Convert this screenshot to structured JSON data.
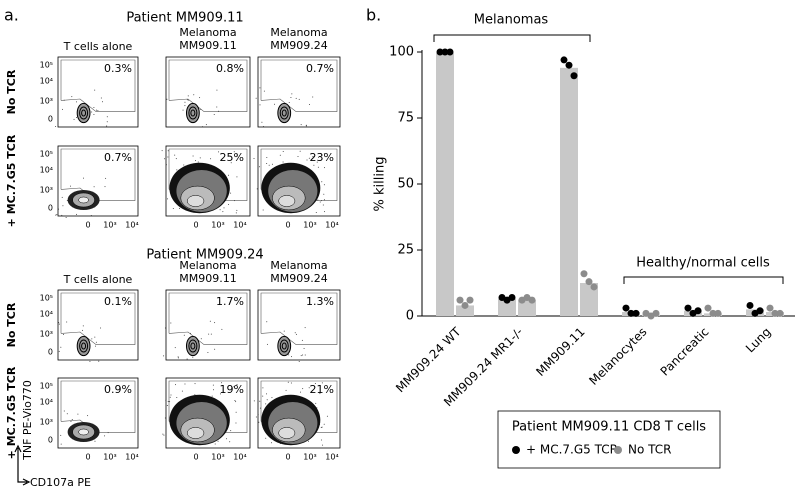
{
  "panel_a": {
    "label": "a.",
    "patients": [
      {
        "title": "Patient MM909.11",
        "columns": [
          [
            "T cells alone"
          ],
          [
            "Melanoma",
            "MM909.11"
          ],
          [
            "Melanoma",
            "MM909.24"
          ]
        ],
        "rows": [
          "No TCR",
          "+ MC.7.G5 TCR"
        ],
        "percentages": [
          [
            "0.3%",
            "0.8%",
            "0.7%"
          ],
          [
            "0.7%",
            "25%",
            "23%"
          ]
        ]
      },
      {
        "title": "Patient MM909.24",
        "columns": [
          [
            "T cells alone"
          ],
          [
            "Melanoma",
            "MM909.11"
          ],
          [
            "Melanoma",
            "MM909.24"
          ]
        ],
        "rows": [
          "No TCR",
          "+ MC.7.G5 TCR"
        ],
        "percentages": [
          [
            "0.1%",
            "1.7%",
            "1.3%"
          ],
          [
            "0.9%",
            "19%",
            "21%"
          ]
        ]
      }
    ],
    "yticks": [
      "10⁵",
      "10⁴",
      "10³",
      "0"
    ],
    "xticks": [
      "0",
      "10³",
      "10⁴"
    ],
    "ylabel": "TNF PE-Vio770",
    "xlabel": "CD107a PE"
  },
  "chart_data": {
    "type": "bar",
    "label": "b.",
    "ylabel": "% killing",
    "categories": [
      "MM909.24 WT",
      "MM909.24 MR1-/-",
      "MM909.11",
      "Melanocytes",
      "Pancreatic",
      "Lung"
    ],
    "category_colors": [
      "#2438d6",
      "#2438d6",
      "#e0302a",
      "#000000",
      "#000000",
      "#000000"
    ],
    "series": [
      {
        "name": "+ MC.7.G5 TCR",
        "color": "#000000",
        "bar_color": "#c8c8c8",
        "values": [
          99.5,
          6.5,
          94,
          1.5,
          2,
          2.5
        ],
        "points": [
          [
            100,
            100,
            100
          ],
          [
            7,
            6,
            7
          ],
          [
            97,
            95,
            91
          ],
          [
            3,
            1,
            1
          ],
          [
            3,
            1,
            2
          ],
          [
            4,
            1,
            2
          ]
        ]
      },
      {
        "name": "No TCR",
        "color": "#8c8c8c",
        "bar_color": "#c8c8c8",
        "values": [
          4,
          6,
          12.5,
          0.5,
          1,
          1.5
        ],
        "points": [
          [
            6,
            4,
            6
          ],
          [
            6,
            7,
            6
          ],
          [
            16,
            13,
            11
          ],
          [
            1,
            0,
            1
          ],
          [
            3,
            1,
            1
          ],
          [
            3,
            1,
            1
          ]
        ]
      }
    ],
    "ylim": [
      0,
      100
    ],
    "yticks": [
      0,
      25,
      50,
      75,
      100
    ],
    "annotations": [
      "Melanomas",
      "Healthy/normal cells"
    ],
    "legend_title": "Patient MM909.11 CD8 T cells",
    "legend_title_color": "#e0302a"
  }
}
